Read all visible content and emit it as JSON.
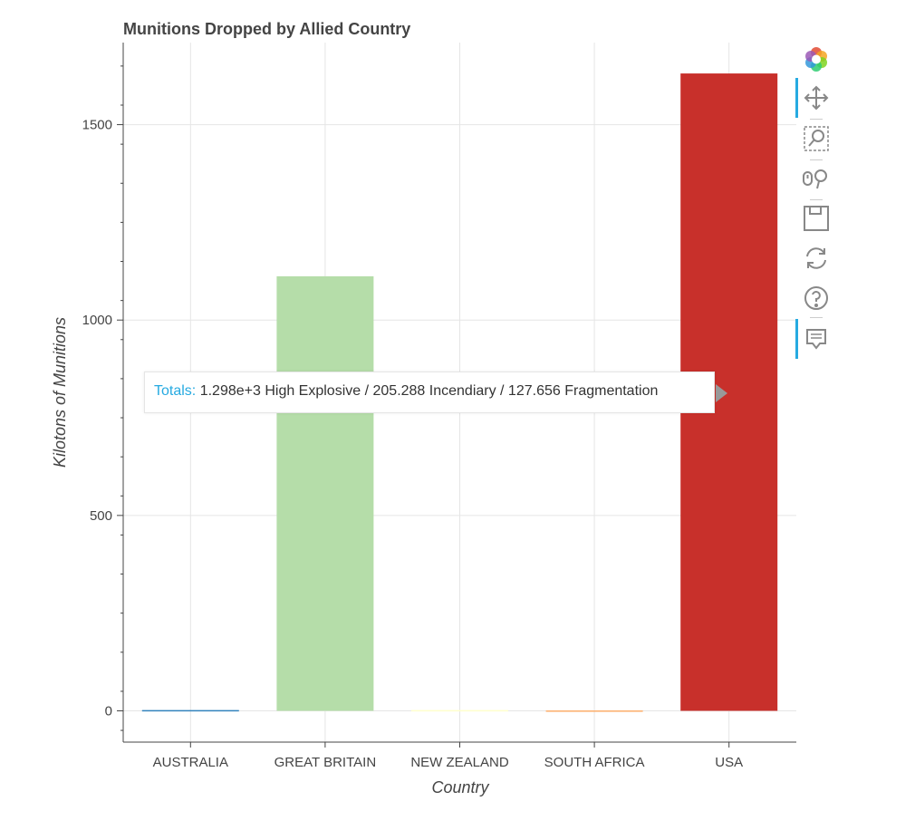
{
  "chart_data": {
    "type": "bar",
    "title": "Munitions Dropped by Allied Country",
    "xlabel": "Country",
    "ylabel": "Kilotons of Munitions",
    "categories": [
      "AUSTRALIA",
      "GREAT BRITAIN",
      "NEW ZEALAND",
      "SOUTH AFRICA",
      "USA"
    ],
    "values": [
      2,
      1112,
      2,
      1,
      1631
    ],
    "colors": [
      "#3182bd",
      "#b5dda9",
      "#ffffcc",
      "#fdae6b",
      "#c8302b"
    ],
    "yticks": [
      0,
      500,
      1000,
      1500
    ],
    "ylim": [
      -80,
      1710
    ],
    "grid": true,
    "tooltip": {
      "label": "Totals:",
      "value": "1.298e+3 High Explosive / 205.288 Incendiary / 127.656 Fragmentation"
    }
  },
  "toolbar": {
    "tools": [
      {
        "name": "bokeh-logo-icon",
        "active": false
      },
      {
        "name": "pan-tool-icon",
        "active": true
      },
      {
        "name": "box-zoom-tool-icon",
        "active": false
      },
      {
        "name": "wheel-zoom-tool-icon",
        "active": false
      },
      {
        "name": "save-tool-icon",
        "active": false
      },
      {
        "name": "reset-tool-icon",
        "active": false
      },
      {
        "name": "help-tool-icon",
        "active": false
      },
      {
        "name": "hover-tool-icon",
        "active": true
      }
    ]
  }
}
